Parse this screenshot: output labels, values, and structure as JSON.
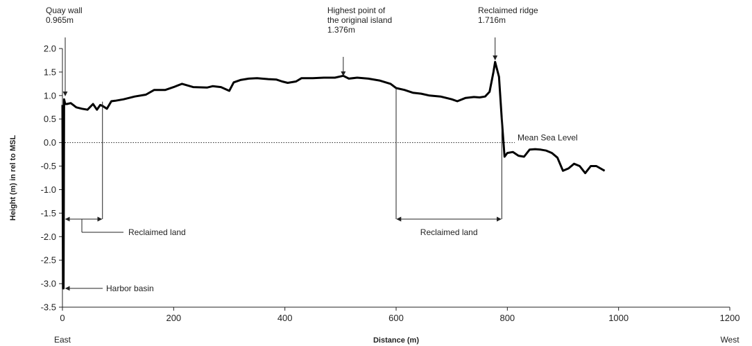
{
  "chart_data": {
    "type": "line",
    "title": "",
    "xlabel": "Distance (m)",
    "ylabel": "Height (m) in rel to MSL",
    "xlim": [
      0,
      1200
    ],
    "ylim": [
      -3.5,
      2.0
    ],
    "x_ticks": [
      0,
      200,
      400,
      600,
      800,
      1000,
      1200
    ],
    "y_ticks": [
      2.0,
      1.5,
      1.0,
      0.5,
      0.0,
      -0.5,
      -1.0,
      -1.5,
      -2.0,
      -2.5,
      -3.0,
      -3.5
    ],
    "x_tick_labels": [
      "0",
      "200",
      "400",
      "600",
      "800",
      "1000",
      "1200"
    ],
    "y_tick_labels": [
      "2.0",
      "1.5",
      "1.0",
      "0.5",
      "0.0",
      "-0.5",
      "-1.0",
      "-1.5",
      "-2.0",
      "-2.5",
      "-3.0",
      "-3.5"
    ],
    "direction_labels": {
      "left": "East",
      "right": "West"
    },
    "reference_line": {
      "y": 0.0,
      "label": "Mean Sea Level"
    },
    "series": [
      {
        "x": [
          0,
          1,
          2,
          3,
          5,
          8,
          15,
          25,
          35,
          45,
          55,
          62,
          68,
          72,
          80,
          88,
          95,
          110,
          130,
          150,
          165,
          185,
          200,
          215,
          235,
          260,
          270,
          285,
          300,
          308,
          320,
          335,
          350,
          370,
          385,
          395,
          405,
          420,
          430,
          450,
          470,
          490,
          505,
          515,
          530,
          550,
          570,
          590,
          600,
          615,
          630,
          645,
          660,
          680,
          700,
          710,
          725,
          740,
          750,
          760,
          768,
          775,
          778,
          785,
          790,
          795,
          800,
          810,
          820,
          830,
          840,
          850,
          860,
          870,
          880,
          890,
          900,
          910,
          920,
          930,
          940,
          950,
          960,
          975
        ],
        "y": [
          0.8,
          -3.1,
          -3.1,
          0.92,
          0.82,
          0.82,
          0.84,
          0.75,
          0.72,
          0.7,
          0.82,
          0.7,
          0.8,
          0.78,
          0.72,
          0.88,
          0.89,
          0.92,
          0.98,
          1.02,
          1.12,
          1.12,
          1.18,
          1.25,
          1.18,
          1.17,
          1.2,
          1.18,
          1.1,
          1.28,
          1.33,
          1.36,
          1.37,
          1.35,
          1.34,
          1.3,
          1.27,
          1.3,
          1.37,
          1.37,
          1.38,
          1.38,
          1.42,
          1.36,
          1.38,
          1.36,
          1.32,
          1.25,
          1.16,
          1.12,
          1.06,
          1.04,
          1.0,
          0.98,
          0.92,
          0.88,
          0.95,
          0.97,
          0.96,
          0.98,
          1.08,
          1.5,
          1.716,
          1.4,
          0.5,
          -0.3,
          -0.22,
          -0.2,
          -0.28,
          -0.3,
          -0.15,
          -0.14,
          -0.15,
          -0.17,
          -0.22,
          -0.32,
          -0.6,
          -0.55,
          -0.45,
          -0.5,
          -0.65,
          -0.5,
          -0.5,
          -0.6
        ]
      }
    ],
    "annotations": [
      {
        "id": "quay",
        "lines": [
          "Quay wall",
          "0.965m"
        ],
        "x": 5,
        "y": 0.965
      },
      {
        "id": "highest",
        "lines": [
          "Highest point of",
          "the original island",
          "1.376m"
        ],
        "x": 505,
        "y": 1.376
      },
      {
        "id": "ridge",
        "lines": [
          "Reclaimed ridge",
          "1.716m"
        ],
        "x": 778,
        "y": 1.716
      },
      {
        "id": "harbor",
        "lines": [
          "Harbor basin"
        ],
        "x": 3,
        "y": -3.1
      },
      {
        "id": "reclaimed_left",
        "lines": [
          "Reclaimed land"
        ],
        "x_from": 3,
        "x_to": 72
      },
      {
        "id": "reclaimed_right",
        "lines": [
          "Reclaimed land"
        ],
        "x_from": 600,
        "x_to": 790
      }
    ]
  }
}
